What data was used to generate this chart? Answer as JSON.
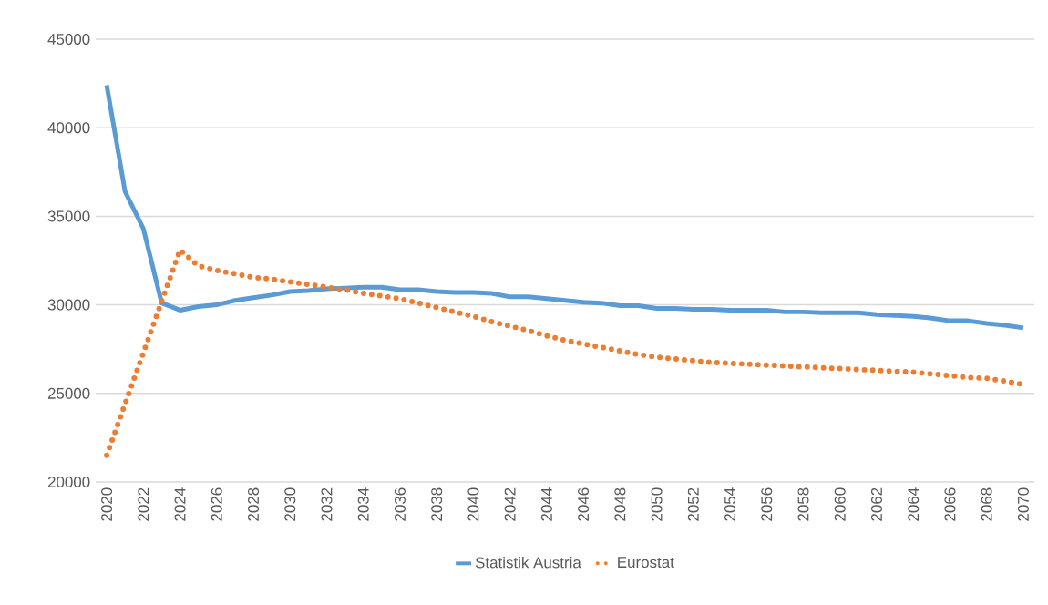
{
  "chart_data": {
    "type": "line",
    "x": [
      2020,
      2021,
      2022,
      2023,
      2024,
      2025,
      2026,
      2027,
      2028,
      2029,
      2030,
      2031,
      2032,
      2033,
      2034,
      2035,
      2036,
      2037,
      2038,
      2039,
      2040,
      2041,
      2042,
      2043,
      2044,
      2045,
      2046,
      2047,
      2048,
      2049,
      2050,
      2051,
      2052,
      2053,
      2054,
      2055,
      2056,
      2057,
      2058,
      2059,
      2060,
      2061,
      2062,
      2063,
      2064,
      2065,
      2066,
      2067,
      2068,
      2069,
      2070
    ],
    "xlim": [
      2019.4,
      2070.6
    ],
    "xticks": [
      2020,
      2022,
      2024,
      2026,
      2028,
      2030,
      2032,
      2034,
      2036,
      2038,
      2040,
      2042,
      2044,
      2046,
      2048,
      2050,
      2052,
      2054,
      2056,
      2058,
      2060,
      2062,
      2064,
      2066,
      2068,
      2070
    ],
    "ylim": [
      20000,
      45000
    ],
    "yticks": [
      20000,
      25000,
      30000,
      35000,
      40000,
      45000
    ],
    "grid": "y",
    "legend": "bottom",
    "marker": "none",
    "series": [
      {
        "name": "Statistik Austria",
        "color": "#5b9bd5",
        "line_style": "solid",
        "values": [
          42400,
          36400,
          34300,
          30100,
          29700,
          29900,
          30000,
          30250,
          30400,
          30550,
          30750,
          30800,
          30900,
          30950,
          31000,
          31000,
          30850,
          30850,
          30750,
          30700,
          30700,
          30650,
          30450,
          30450,
          30350,
          30250,
          30150,
          30100,
          29950,
          29950,
          29800,
          29800,
          29750,
          29750,
          29700,
          29700,
          29700,
          29600,
          29600,
          29550,
          29550,
          29550,
          29450,
          29400,
          29350,
          29250,
          29100,
          29100,
          28950,
          28850,
          28700
        ]
      },
      {
        "name": "Eurostat",
        "color": "#ed7d31",
        "line_style": "dotted",
        "values": [
          21500,
          24400,
          27300,
          30200,
          33100,
          32200,
          31950,
          31750,
          31550,
          31450,
          31300,
          31150,
          31000,
          30850,
          30650,
          30500,
          30350,
          30100,
          29850,
          29600,
          29350,
          29050,
          28800,
          28550,
          28250,
          28000,
          27800,
          27600,
          27400,
          27200,
          27050,
          26950,
          26850,
          26750,
          26700,
          26650,
          26600,
          26550,
          26500,
          26450,
          26400,
          26350,
          26300,
          26250,
          26200,
          26100,
          26000,
          25900,
          25850,
          25700,
          25500
        ]
      }
    ]
  }
}
